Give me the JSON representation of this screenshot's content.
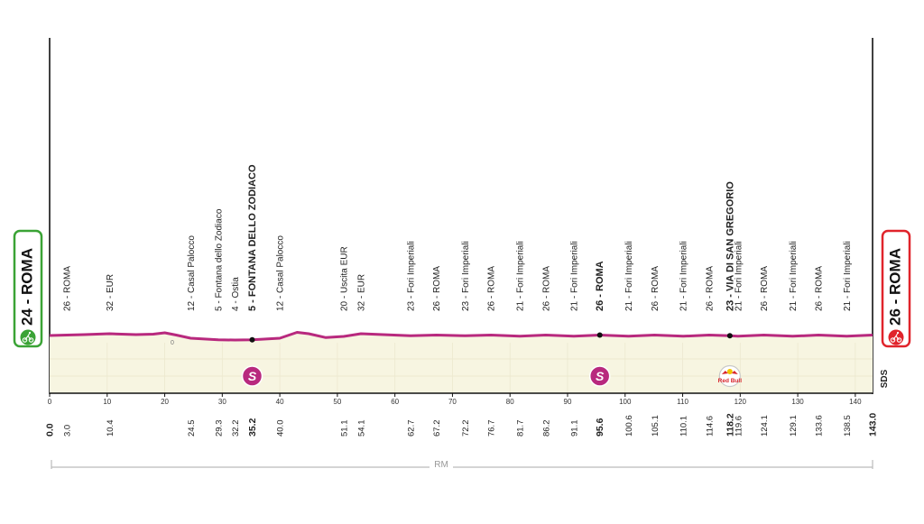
{
  "start": {
    "altitude": "24",
    "name": "ROMA",
    "label": "24 - ROMA",
    "color": "#3aa335"
  },
  "finish": {
    "altitude": "26",
    "name": "ROMA",
    "label": "26 - ROMA",
    "color": "#e0242b"
  },
  "start_km": "0.0",
  "finish_km": "143.0",
  "sea_level_label": "0",
  "sds_label": "SDS",
  "circuit_label": "RM",
  "sponsor_label": "Red Bull",
  "colors": {
    "profile": "#b8297e",
    "fill": "#f7f5e1",
    "sprint": "#b8297e"
  },
  "icons": [
    "cyclist-icon",
    "finish-flag-icon",
    "sprint-icon",
    "red-bull-kom-icon"
  ],
  "chart_data": {
    "type": "area",
    "xlim": [
      0,
      143
    ],
    "x_ticks": [
      0,
      10,
      20,
      30,
      40,
      50,
      60,
      70,
      80,
      90,
      100,
      110,
      120,
      130,
      140
    ],
    "profile": {
      "x": [
        0,
        3,
        6,
        10.4,
        15,
        18,
        20,
        22,
        24.5,
        29.3,
        32.2,
        35.2,
        40,
        43,
        45,
        48,
        51.1,
        54.1,
        62.7,
        67.2,
        72.2,
        76.7,
        81.7,
        86.2,
        91.1,
        95.6,
        100.6,
        105.1,
        110.1,
        114.6,
        118.2,
        119.6,
        124.1,
        129.1,
        133.6,
        138.5,
        143
      ],
      "y": [
        24,
        26,
        28,
        32,
        28,
        30,
        36,
        26,
        12,
        5,
        4,
        5,
        12,
        38,
        32,
        15,
        20,
        32,
        23,
        26,
        23,
        26,
        21,
        26,
        21,
        26,
        21,
        26,
        21,
        26,
        23,
        21,
        26,
        21,
        26,
        21,
        26
      ]
    },
    "waypoints": [
      {
        "km": "3.0",
        "text": "26 - ROMA",
        "bold": false
      },
      {
        "km": "10.4",
        "text": "32 - EUR",
        "bold": false
      },
      {
        "km": "24.5",
        "text": "12 - Casal Palocco",
        "bold": false
      },
      {
        "km": "29.3",
        "text": "5 - Fontana dello Zodiaco",
        "bold": false
      },
      {
        "km": "32.2",
        "text": "4 - Ostia",
        "bold": false
      },
      {
        "km": "35.2",
        "text": "5 - FONTANA DELLO ZODIACO",
        "bold": true
      },
      {
        "km": "40.0",
        "text": "12 - Casal Palocco",
        "bold": false
      },
      {
        "km": "51.1",
        "text": "20 - Uscita EUR",
        "bold": false
      },
      {
        "km": "54.1",
        "text": "32 - EUR",
        "bold": false
      },
      {
        "km": "62.7",
        "text": "23 - Fori Imperiali",
        "bold": false
      },
      {
        "km": "67.2",
        "text": "26 - ROMA",
        "bold": false
      },
      {
        "km": "72.2",
        "text": "23 - Fori Imperiali",
        "bold": false
      },
      {
        "km": "76.7",
        "text": "26 - ROMA",
        "bold": false
      },
      {
        "km": "81.7",
        "text": "21 - Fori Imperiali",
        "bold": false
      },
      {
        "km": "86.2",
        "text": "26 - ROMA",
        "bold": false
      },
      {
        "km": "91.1",
        "text": "21 - Fori Imperiali",
        "bold": false
      },
      {
        "km": "95.6",
        "text": "26 - ROMA",
        "bold": true
      },
      {
        "km": "100.6",
        "text": "21 - Fori Imperiali",
        "bold": false
      },
      {
        "km": "105.1",
        "text": "26 - ROMA",
        "bold": false
      },
      {
        "km": "110.1",
        "text": "21 - Fori Imperiali",
        "bold": false
      },
      {
        "km": "114.6",
        "text": "26 - ROMA",
        "bold": false
      },
      {
        "km": "118.2",
        "text": "23 - VIA DI SAN GREGORIO",
        "bold": true
      },
      {
        "km": "119.6",
        "text": "21 - Fori Imperiali",
        "bold": false
      },
      {
        "km": "124.1",
        "text": "26 - ROMA",
        "bold": false
      },
      {
        "km": "129.1",
        "text": "21 - Fori Imperiali",
        "bold": false
      },
      {
        "km": "133.6",
        "text": "26 - ROMA",
        "bold": false
      },
      {
        "km": "138.5",
        "text": "21 - Fori Imperiali",
        "bold": false
      }
    ],
    "sprints": [
      {
        "km": 35.2,
        "label": "S"
      },
      {
        "km": 95.6,
        "label": "S"
      }
    ],
    "kom": [
      {
        "km": 118.2
      }
    ]
  }
}
